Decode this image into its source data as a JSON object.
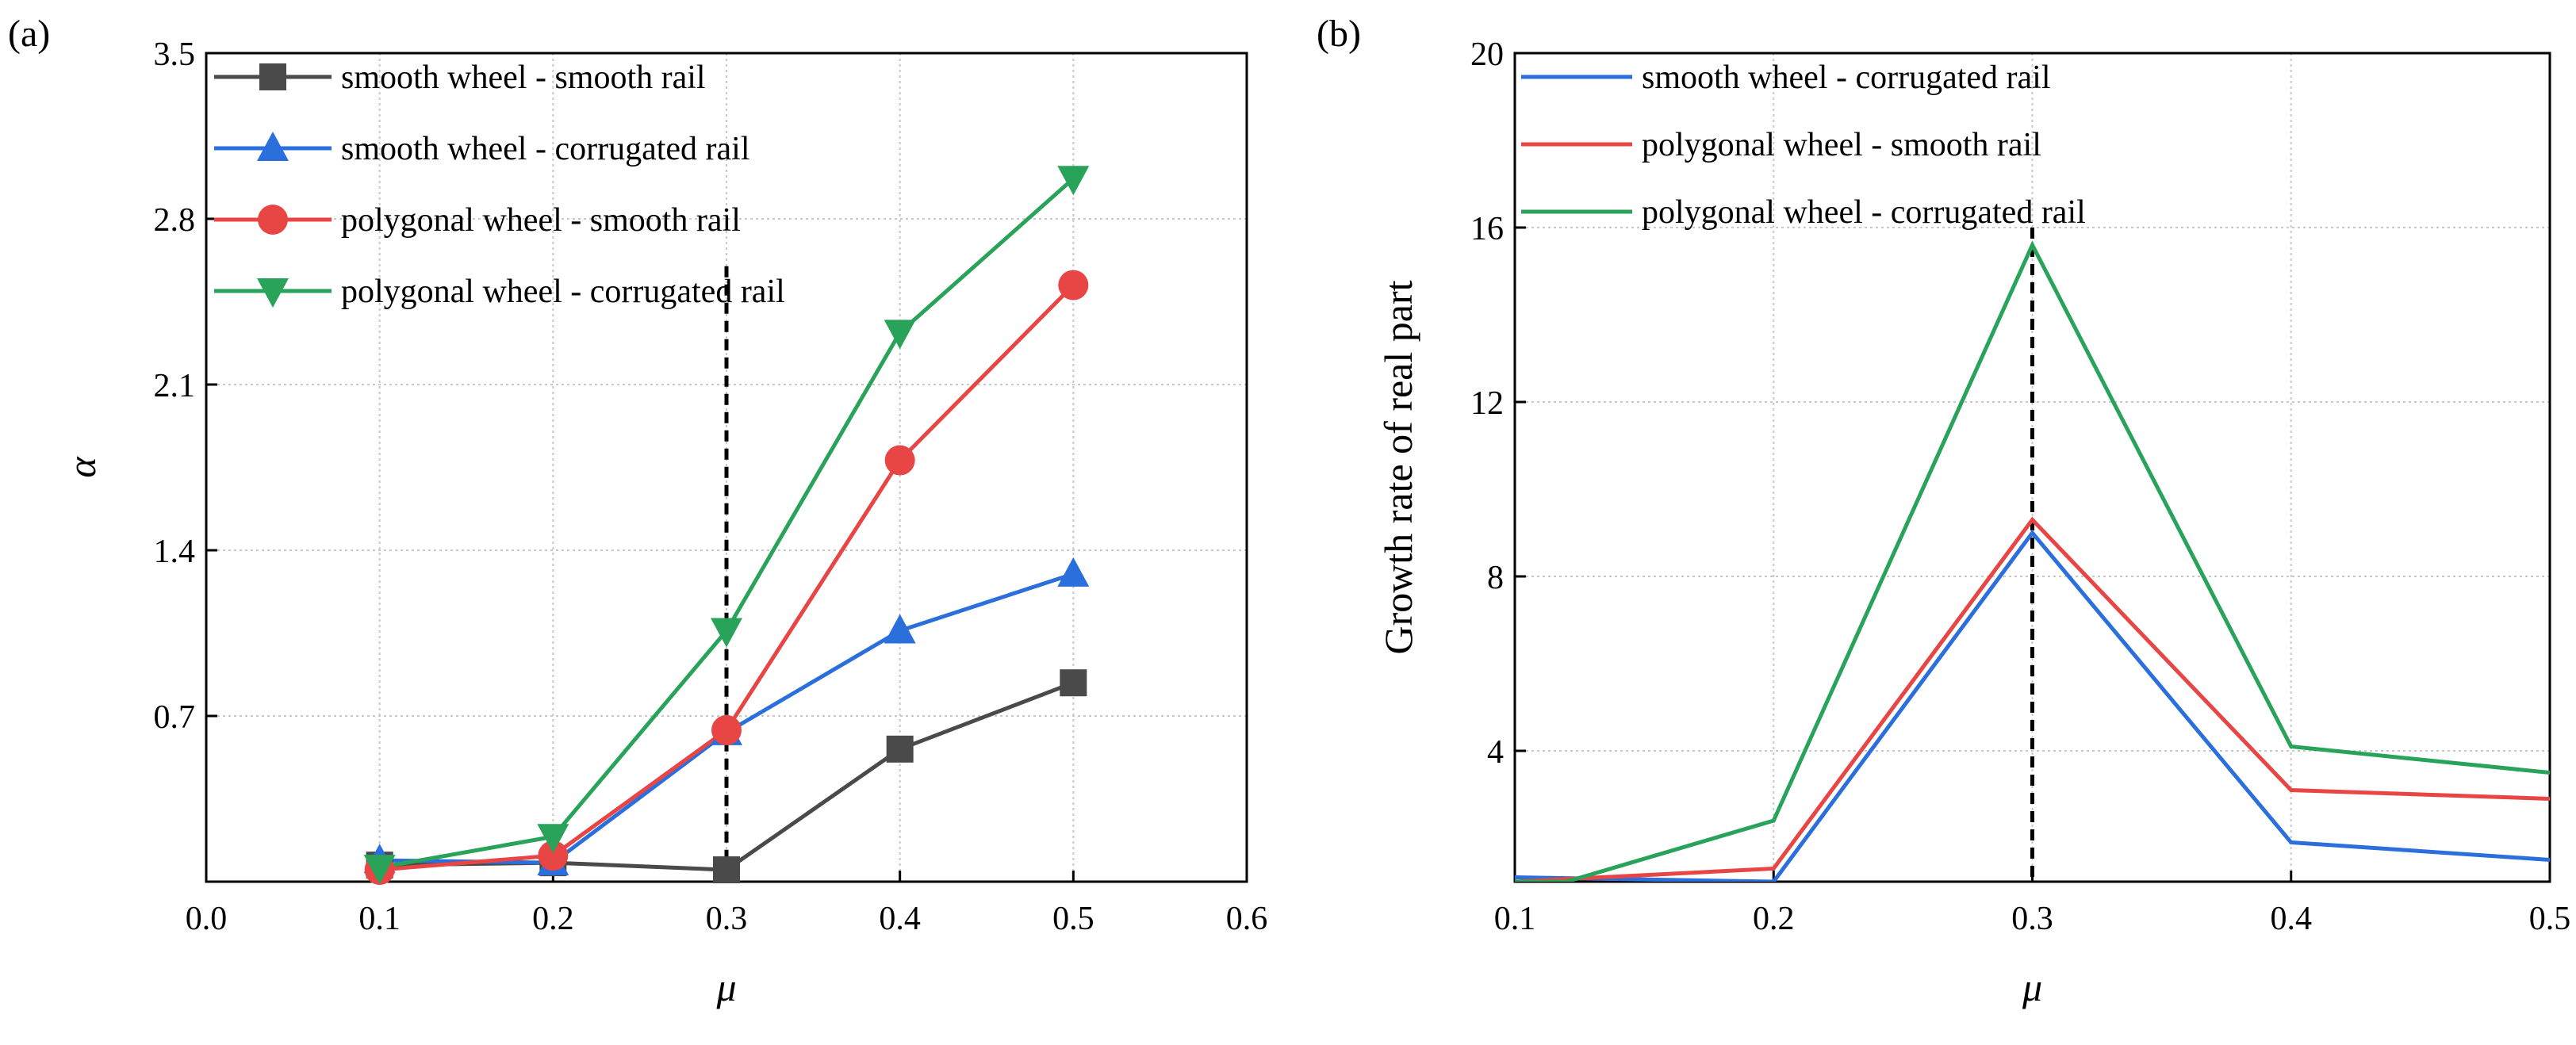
{
  "chart_data": [
    {
      "type": "line",
      "panel": "(a)",
      "xlabel": "μ",
      "ylabel": "α",
      "xlim": [
        0.0,
        0.6
      ],
      "ylim": [
        0.0,
        3.5
      ],
      "xticks": [
        "0.0",
        "0.1",
        "0.2",
        "0.3",
        "0.4",
        "0.5",
        "0.6"
      ],
      "yticks": [
        "0.7",
        "1.4",
        "2.1",
        "2.8",
        "3.5"
      ],
      "x": [
        0.1,
        0.2,
        0.3,
        0.4,
        0.5
      ],
      "grid": true,
      "reference_line_x": 0.3,
      "reference_line_top": 2.6,
      "legend_position": "top-left",
      "series": [
        {
          "name": "smooth wheel - smooth rail",
          "color": "#4a4a4a",
          "marker": "square",
          "values": [
            0.07,
            0.08,
            0.05,
            0.56,
            0.84
          ]
        },
        {
          "name": "smooth wheel - corrugated rail",
          "color": "#2a6fdb",
          "marker": "triangle-up",
          "values": [
            0.09,
            0.08,
            0.63,
            1.06,
            1.3
          ]
        },
        {
          "name": "polygonal wheel - smooth rail",
          "color": "#e84545",
          "marker": "circle",
          "values": [
            0.05,
            0.11,
            0.64,
            1.78,
            2.52
          ]
        },
        {
          "name": "polygonal wheel - corrugated rail",
          "color": "#2aa35a",
          "marker": "triangle-down",
          "values": [
            0.06,
            0.19,
            1.06,
            2.32,
            2.97
          ]
        }
      ]
    },
    {
      "type": "line",
      "panel": "(b)",
      "xlabel": "μ",
      "ylabel": "Growth rate of real part",
      "xlim": [
        0.1,
        0.5
      ],
      "ylim": [
        1.0,
        20.0
      ],
      "xticks": [
        "0.1",
        "0.2",
        "0.3",
        "0.4",
        "0.5"
      ],
      "yticks": [
        "4",
        "8",
        "12",
        "16",
        "20"
      ],
      "x": [
        0.1,
        0.2,
        0.3,
        0.4,
        0.5
      ],
      "grid": true,
      "reference_line_x": 0.3,
      "reference_line_top": 16.0,
      "legend_position": "top-left",
      "series": [
        {
          "name": "smooth wheel - corrugated rail",
          "color": "#2a6fdb",
          "values": [
            1.1,
            1.0,
            9.0,
            1.9,
            1.5
          ]
        },
        {
          "name": "polygonal wheel - smooth rail",
          "color": "#e84545",
          "values": [
            1.0,
            1.3,
            9.3,
            3.1,
            2.9
          ]
        },
        {
          "name": "polygonal wheel - corrugated rail",
          "color": "#2aa35a",
          "x_override": [
            0.1,
            0.12,
            0.2,
            0.3,
            0.4,
            0.5
          ],
          "values_override": [
            1.0,
            1.0,
            2.4,
            15.6,
            4.1,
            3.5
          ]
        }
      ]
    }
  ]
}
